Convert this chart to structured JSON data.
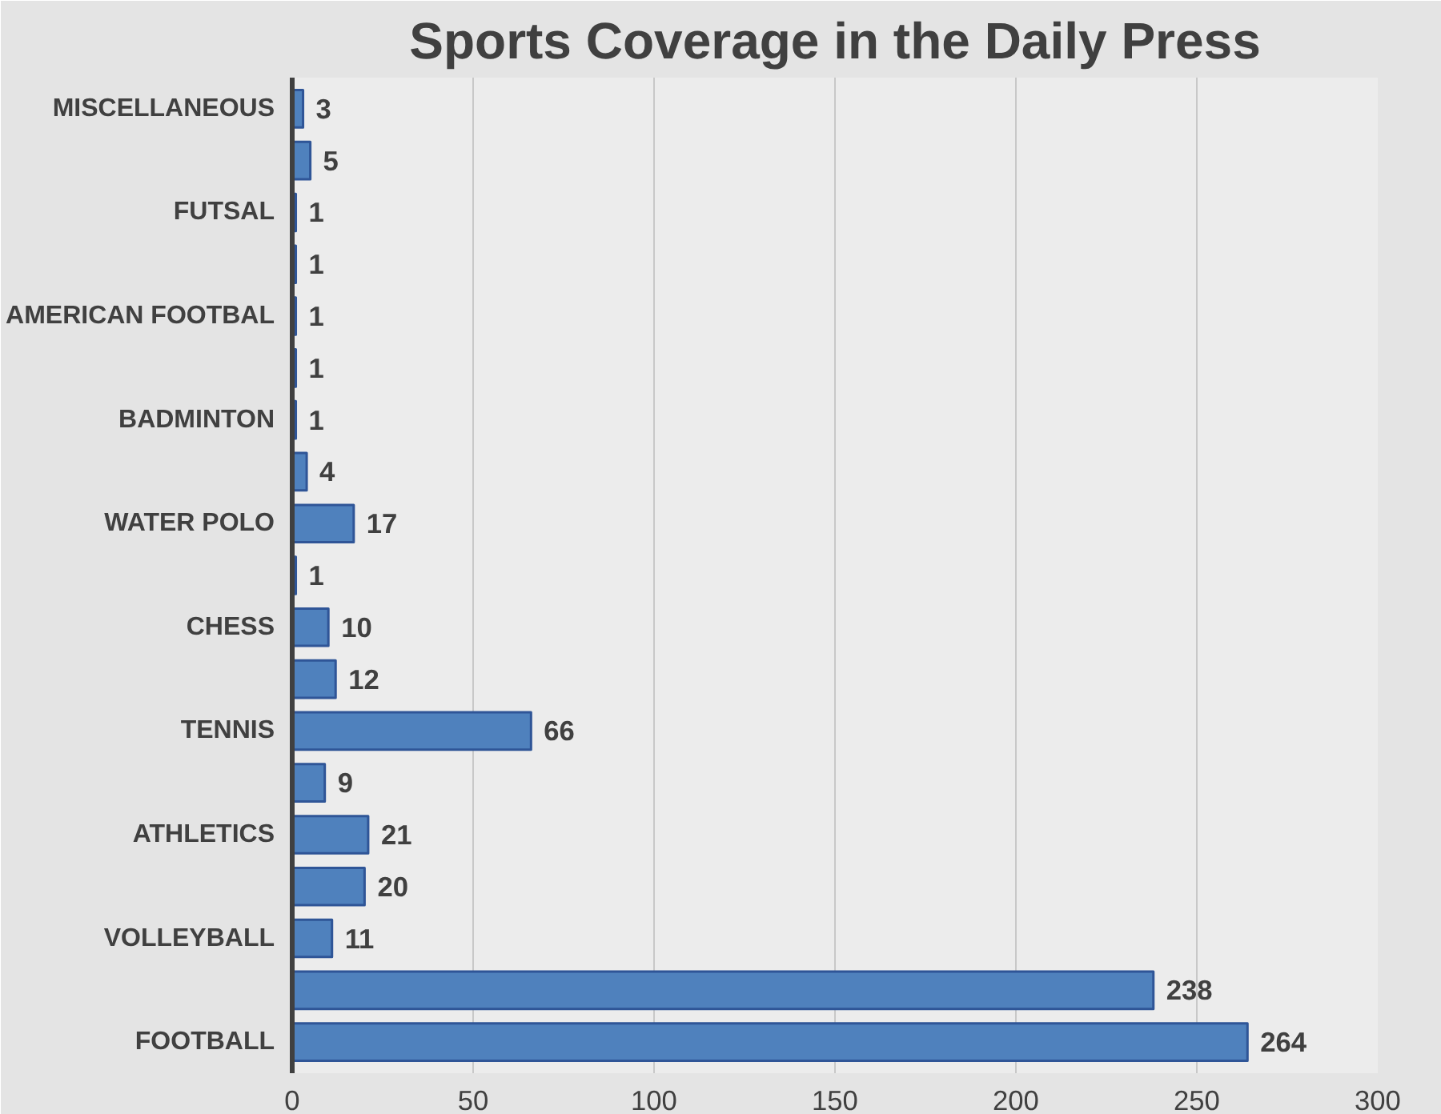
{
  "chart_data": {
    "type": "bar",
    "orientation": "horizontal",
    "title": "Sports Coverage in the Daily Press",
    "categories": [
      "MISCELLANEOUS",
      null,
      "FUTSAL",
      null,
      "AMERICAN FOOTBAL",
      null,
      "BADMINTON",
      null,
      "WATER POLO",
      null,
      "CHESS",
      null,
      "TENNIS",
      null,
      "ATHLETICS",
      null,
      "VOLLEYBALL",
      null,
      "FOOTBALL"
    ],
    "values": [
      3,
      5,
      1,
      1,
      1,
      1,
      1,
      4,
      17,
      1,
      10,
      12,
      66,
      9,
      21,
      20,
      11,
      238,
      264
    ],
    "color": "#4f81bd",
    "xlim": [
      0,
      300
    ],
    "xticks": [
      0,
      50,
      100,
      150,
      200,
      250,
      300
    ],
    "grid": "x",
    "data_labels": true
  }
}
